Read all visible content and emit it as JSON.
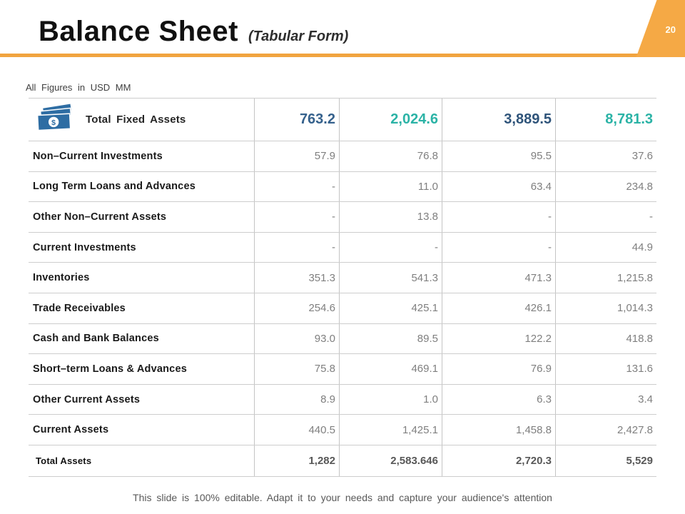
{
  "header": {
    "title": "Balance Sheet",
    "subtitle": "(Tabular Form)",
    "page_number": "20"
  },
  "colors": {
    "accent_orange": "#F1A43F",
    "tab_orange": "#F5A945",
    "steel_blue": "#35618C",
    "teal": "#2BB3A6",
    "navy_blue": "#2F547A",
    "icon_blue": "#2E6DA3"
  },
  "table": {
    "note": "All Figures in USD MM",
    "header_row": {
      "icon": "money-icon",
      "label": "Total Fixed Assets",
      "values": [
        "763.2",
        "2,024.6",
        "3,889.5",
        "8,781.3"
      ],
      "value_colors": [
        "#35618C",
        "#2BB3A6",
        "#2F547A",
        "#2BB3A6"
      ]
    },
    "rows": [
      {
        "label": "Non–Current Investments",
        "values": [
          "57.9",
          "76.8",
          "95.5",
          "37.6"
        ]
      },
      {
        "label": "Long Term Loans and Advances",
        "values": [
          "-",
          "11.0",
          "63.4",
          "234.8"
        ]
      },
      {
        "label": "Other Non–Current Assets",
        "values": [
          "-",
          "13.8",
          "-",
          "-"
        ]
      },
      {
        "label": "Current Investments",
        "values": [
          "-",
          "-",
          "-",
          "44.9"
        ]
      },
      {
        "label": "Inventories",
        "values": [
          "351.3",
          "541.3",
          "471.3",
          "1,215.8"
        ]
      },
      {
        "label": "Trade Receivables",
        "values": [
          "254.6",
          "425.1",
          "426.1",
          "1,014.3"
        ]
      },
      {
        "label": "Cash and Bank Balances",
        "values": [
          "93.0",
          "89.5",
          "122.2",
          "418.8"
        ]
      },
      {
        "label": "Short–term Loans & Advances",
        "values": [
          "75.8",
          "469.1",
          "76.9",
          "131.6"
        ]
      },
      {
        "label": "Other Current Assets",
        "values": [
          "8.9",
          "1.0",
          "6.3",
          "3.4"
        ]
      },
      {
        "label": "Current Assets",
        "values": [
          "440.5",
          "1,425.1",
          "1,458.8",
          "2,427.8"
        ]
      }
    ],
    "total_row": {
      "label": "Total Assets",
      "values": [
        "1,282",
        "2,583.646",
        "2,720.3",
        "5,529"
      ]
    }
  },
  "footer": {
    "text": "This slide is 100% editable. Adapt it to your needs and capture your audience's attention"
  }
}
